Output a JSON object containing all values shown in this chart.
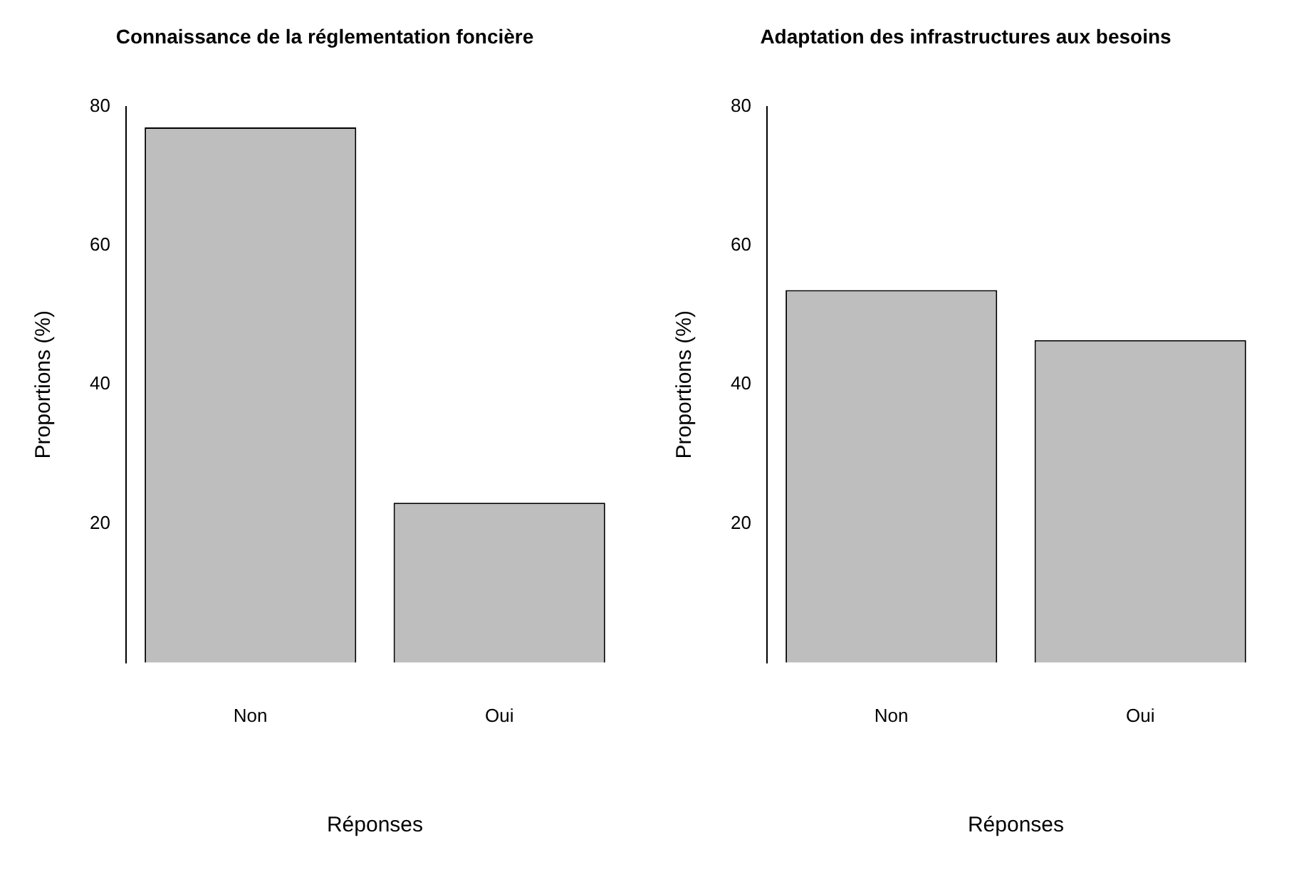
{
  "chart_data": [
    {
      "type": "bar",
      "title": "Connaissance de la réglementation foncière",
      "xlabel": "Réponses",
      "ylabel": "Proportions (%)",
      "categories": [
        "Non",
        "Oui"
      ],
      "values": [
        77,
        23
      ],
      "color": "#bebebe",
      "ylim": [
        0,
        80
      ],
      "yticks": [
        20,
        40,
        60,
        80
      ],
      "grid": false,
      "legend": false
    },
    {
      "type": "bar",
      "title": "Adaptation des infrastructures aux besoins",
      "xlabel": "Réponses",
      "ylabel": "Proportions (%)",
      "categories": [
        "Non",
        "Oui"
      ],
      "values": [
        53.6,
        46.4
      ],
      "color": "#bebebe",
      "ylim": [
        0,
        80
      ],
      "yticks": [
        20,
        40,
        60,
        80
      ],
      "grid": false,
      "legend": false
    }
  ]
}
